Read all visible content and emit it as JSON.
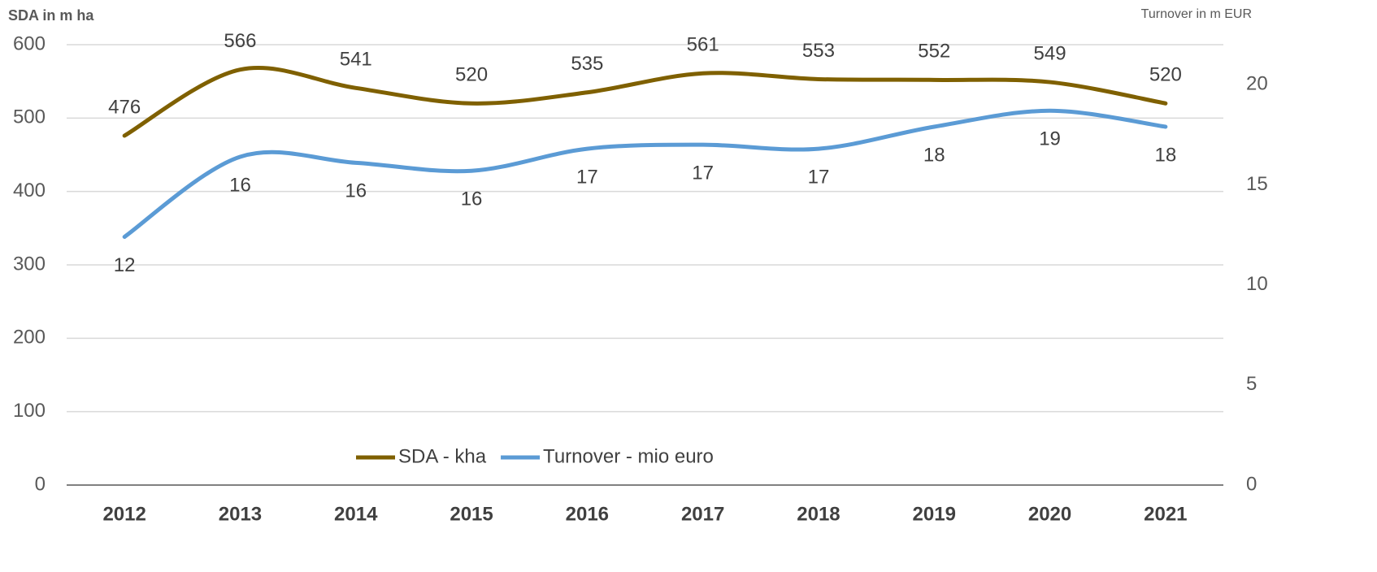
{
  "chart_data": {
    "type": "line",
    "y_label": "SDA in m ha",
    "y2_label": "Turnover in m EUR",
    "categories": [
      "2012",
      "2013",
      "2014",
      "2015",
      "2016",
      "2017",
      "2018",
      "2019",
      "2020",
      "2021"
    ],
    "series": [
      {
        "name": "SDA - kha",
        "color": "#7f6000",
        "values": [
          476,
          566,
          541,
          520,
          535,
          561,
          553,
          552,
          549,
          520
        ]
      },
      {
        "name": "Turnover - mio euro",
        "color": "#5b9bd5",
        "axis": "y2",
        "values": [
          12.4,
          16.4,
          16.1,
          15.7,
          16.8,
          17.0,
          16.8,
          17.9,
          18.7,
          17.9
        ],
        "value_labels": [
          "12",
          "16",
          "16",
          "16",
          "17",
          "17",
          "17",
          "18",
          "19",
          "18"
        ]
      }
    ],
    "ylim": [
      0,
      600
    ],
    "yticks": [
      0,
      100,
      200,
      300,
      400,
      500,
      600
    ],
    "y2lim": [
      0,
      22
    ],
    "y2ticks": [
      0,
      5,
      10,
      15,
      20
    ],
    "grid": true,
    "legend": "bottom"
  }
}
